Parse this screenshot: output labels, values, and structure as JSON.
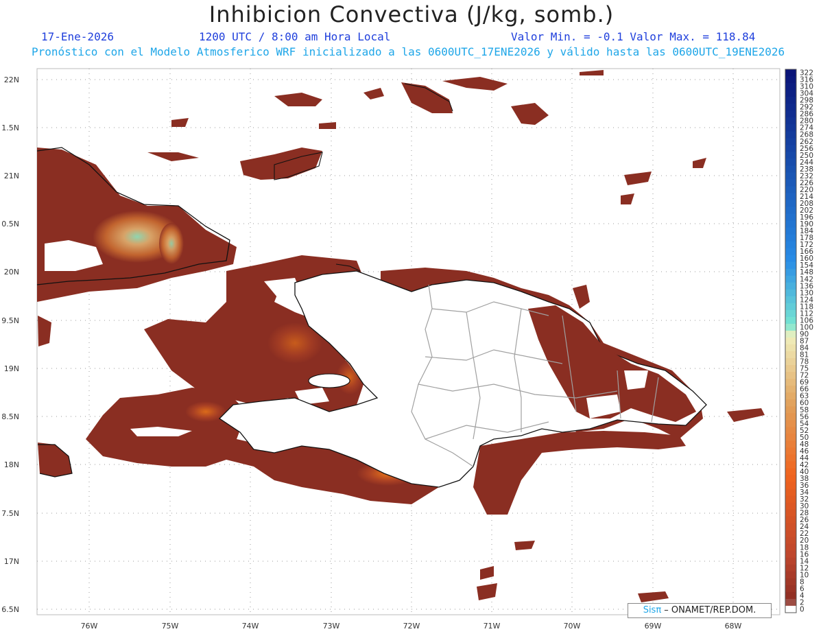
{
  "title": "Inhibicion Convectiva (J/kg, somb.)",
  "header": {
    "date": "17-Ene-2026",
    "time": "1200 UTC / 8:00 am Hora Local",
    "minmax": "Valor Min. = -0.1  Valor Max. = 118.84",
    "model_info": "Pronóstico con el Modelo Atmosferico WRF inicializado a las 0600UTC_17ENE2026 y válido hasta las  0600UTC_19ENE2026"
  },
  "axes": {
    "lat_labels": [
      "22N",
      "1.5N",
      "21N",
      "0.5N",
      "20N",
      "9.5N",
      "19N",
      "8.5N",
      "18N",
      "7.5N",
      "17N",
      "6.5N"
    ],
    "lon_labels": [
      "76W",
      "75W",
      "74W",
      "73W",
      "72W",
      "71W",
      "70W",
      "69W",
      "68W"
    ]
  },
  "colorbar": {
    "labels": [
      "322",
      "316",
      "310",
      "304",
      "298",
      "292",
      "286",
      "280",
      "274",
      "268",
      "262",
      "256",
      "250",
      "244",
      "238",
      "232",
      "226",
      "220",
      "214",
      "208",
      "202",
      "196",
      "190",
      "184",
      "178",
      "172",
      "166",
      "160",
      "154",
      "148",
      "142",
      "136",
      "130",
      "124",
      "118",
      "112",
      "106",
      "100",
      "90",
      "87",
      "84",
      "81",
      "78",
      "75",
      "72",
      "69",
      "66",
      "63",
      "60",
      "58",
      "56",
      "54",
      "52",
      "50",
      "48",
      "46",
      "44",
      "42",
      "40",
      "38",
      "36",
      "34",
      "32",
      "30",
      "28",
      "26",
      "24",
      "22",
      "20",
      "18",
      "16",
      "14",
      "12",
      "10",
      "8",
      "6",
      "4",
      "2",
      "0"
    ]
  },
  "credit": {
    "brand": "Sisπ",
    "org": " – ONAMET/REP.DOM."
  },
  "colors": {
    "field_low": "#8a2e22",
    "field_mid": "#c04a25",
    "field_high": "#f07a18",
    "accent_green": "#90e8c0",
    "coast": "#111111",
    "border": "#a0a0a0"
  }
}
